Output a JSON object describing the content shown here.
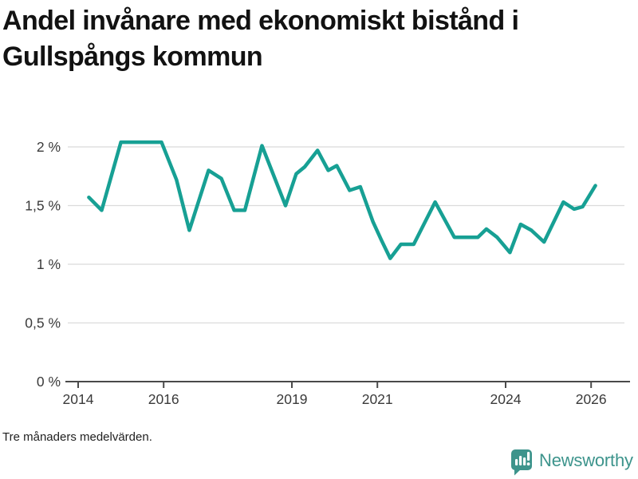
{
  "title": "Andel invånare med ekonomiskt bistånd i Gullspångs kommun",
  "footnote": "Tre månaders medelvärden.",
  "branding": {
    "name": "Newsworthy",
    "icon": "speech-bubble-bar-chart-exclamation"
  },
  "colors": {
    "line": "#17a094",
    "grid": "#dbdbdb",
    "axis": "#4a4a4a",
    "tick_label": "#3a3a3a",
    "title_text": "#121212",
    "brand_teal": "#3d948c"
  },
  "chart_data": {
    "type": "line",
    "title": "Andel invånare med ekonomiskt bistånd i Gullspångs kommun",
    "xlabel": "",
    "ylabel": "",
    "unit": "%",
    "grid": true,
    "legend": "none",
    "xlim": [
      2013.7,
      2026.95
    ],
    "ylim": [
      0,
      2.2
    ],
    "x_ticks": [
      {
        "value": 2014,
        "label": "2014"
      },
      {
        "value": 2016,
        "label": "2016"
      },
      {
        "value": 2019,
        "label": "2019"
      },
      {
        "value": 2021,
        "label": "2021"
      },
      {
        "value": 2024,
        "label": "2024"
      },
      {
        "value": 2026,
        "label": "2026"
      }
    ],
    "y_ticks": [
      {
        "value": 0,
        "label": "0 %"
      },
      {
        "value": 0.5,
        "label": "0,5 %"
      },
      {
        "value": 1,
        "label": "1 %"
      },
      {
        "value": 1.5,
        "label": "1,5 %"
      },
      {
        "value": 2,
        "label": "2 %"
      }
    ],
    "series": [
      {
        "name": "Andel invånare med ekonomiskt bistånd",
        "points": [
          [
            2014.25,
            1.57
          ],
          [
            2014.55,
            1.46
          ],
          [
            2015.0,
            2.04
          ],
          [
            2015.95,
            2.04
          ],
          [
            2016.3,
            1.72
          ],
          [
            2016.6,
            1.29
          ],
          [
            2017.05,
            1.8
          ],
          [
            2017.35,
            1.73
          ],
          [
            2017.65,
            1.46
          ],
          [
            2017.9,
            1.46
          ],
          [
            2018.3,
            2.01
          ],
          [
            2018.85,
            1.5
          ],
          [
            2019.1,
            1.77
          ],
          [
            2019.3,
            1.83
          ],
          [
            2019.6,
            1.97
          ],
          [
            2019.85,
            1.8
          ],
          [
            2020.05,
            1.84
          ],
          [
            2020.35,
            1.63
          ],
          [
            2020.6,
            1.66
          ],
          [
            2020.9,
            1.36
          ],
          [
            2021.1,
            1.2
          ],
          [
            2021.3,
            1.05
          ],
          [
            2021.55,
            1.17
          ],
          [
            2021.85,
            1.17
          ],
          [
            2022.35,
            1.53
          ],
          [
            2022.8,
            1.23
          ],
          [
            2023.35,
            1.23
          ],
          [
            2023.55,
            1.3
          ],
          [
            2023.8,
            1.23
          ],
          [
            2024.1,
            1.1
          ],
          [
            2024.35,
            1.34
          ],
          [
            2024.6,
            1.29
          ],
          [
            2024.9,
            1.19
          ],
          [
            2025.35,
            1.53
          ],
          [
            2025.6,
            1.47
          ],
          [
            2025.8,
            1.49
          ],
          [
            2026.1,
            1.67
          ]
        ]
      }
    ]
  }
}
